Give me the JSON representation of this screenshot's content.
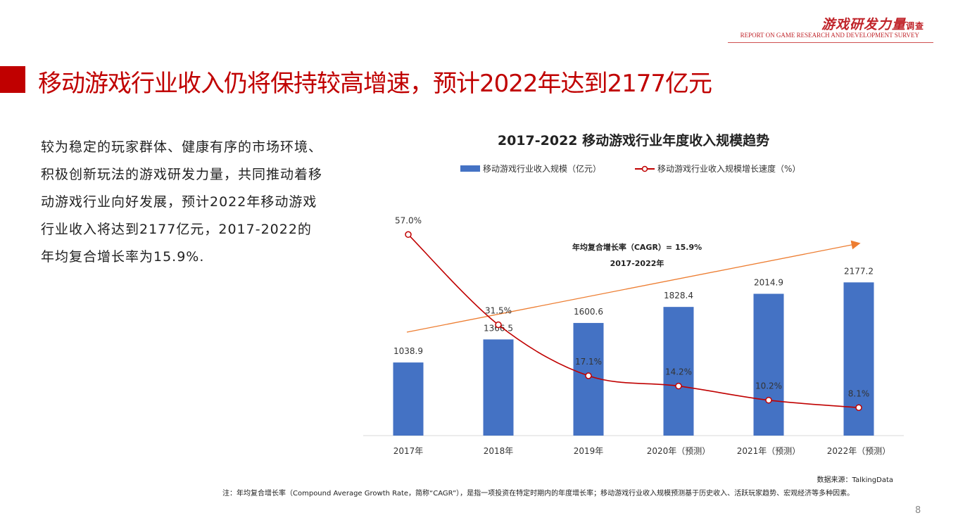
{
  "brand": {
    "name": "游戏研发力量",
    "suffix": "调查",
    "subtitle": "REPORT ON GAME RESEARCH AND DEVELOPMENT SURVEY"
  },
  "title": "移动游戏行业收入仍将保持较高增速，预计2022年达到2177亿元",
  "body": "较为稳定的玩家群体、健康有序的市场环境、积极创新玩法的游戏研发力量，共同推动着移动游戏行业向好发展，预计2022年移动游戏行业收入将达到2177亿元，2017-2022的年均复合增长率为15.9%.",
  "source": "数据来源：TalkingData",
  "note": "注：年均复合增长率（Compound Average Growth Rate，简称“CAGR”），是指一项投资在特定时期内的年度增长率；移动游戏行业收入规模预测基于历史收入、活跃玩家趋势、宏观经济等多种因素。",
  "page_number": "8",
  "chart_data": {
    "type": "bar+line",
    "title": "2017-2022  移动游戏行业年度收入规模趋势",
    "categories": [
      "2017年",
      "2018年",
      "2019年",
      "2020年（预测）",
      "2021年（预测）",
      "2022年（预测）"
    ],
    "series": [
      {
        "name": "移动游戏行业收入规模（亿元）",
        "type": "bar",
        "values": [
          1038.9,
          1366.5,
          1600.6,
          1828.4,
          2014.9,
          2177.2
        ],
        "labels": [
          "1038.9",
          "1366.5",
          "1600.6",
          "1828.4",
          "2014.9",
          "2177.2"
        ],
        "color": "#4472c4"
      },
      {
        "name": "移动游戏行业收入规模增长速度（%）",
        "type": "line",
        "values": [
          57.0,
          31.5,
          17.1,
          14.2,
          10.2,
          8.1
        ],
        "labels": [
          "57.0%",
          "31.5%",
          "17.1%",
          "14.2%",
          "10.2%",
          "8.1%"
        ],
        "color": "#c00000"
      }
    ],
    "annotation": {
      "line1": "年均复合增长率（CAGR）= 15.9%",
      "line2": "2017-2022年",
      "color": "#ed7d31"
    }
  }
}
